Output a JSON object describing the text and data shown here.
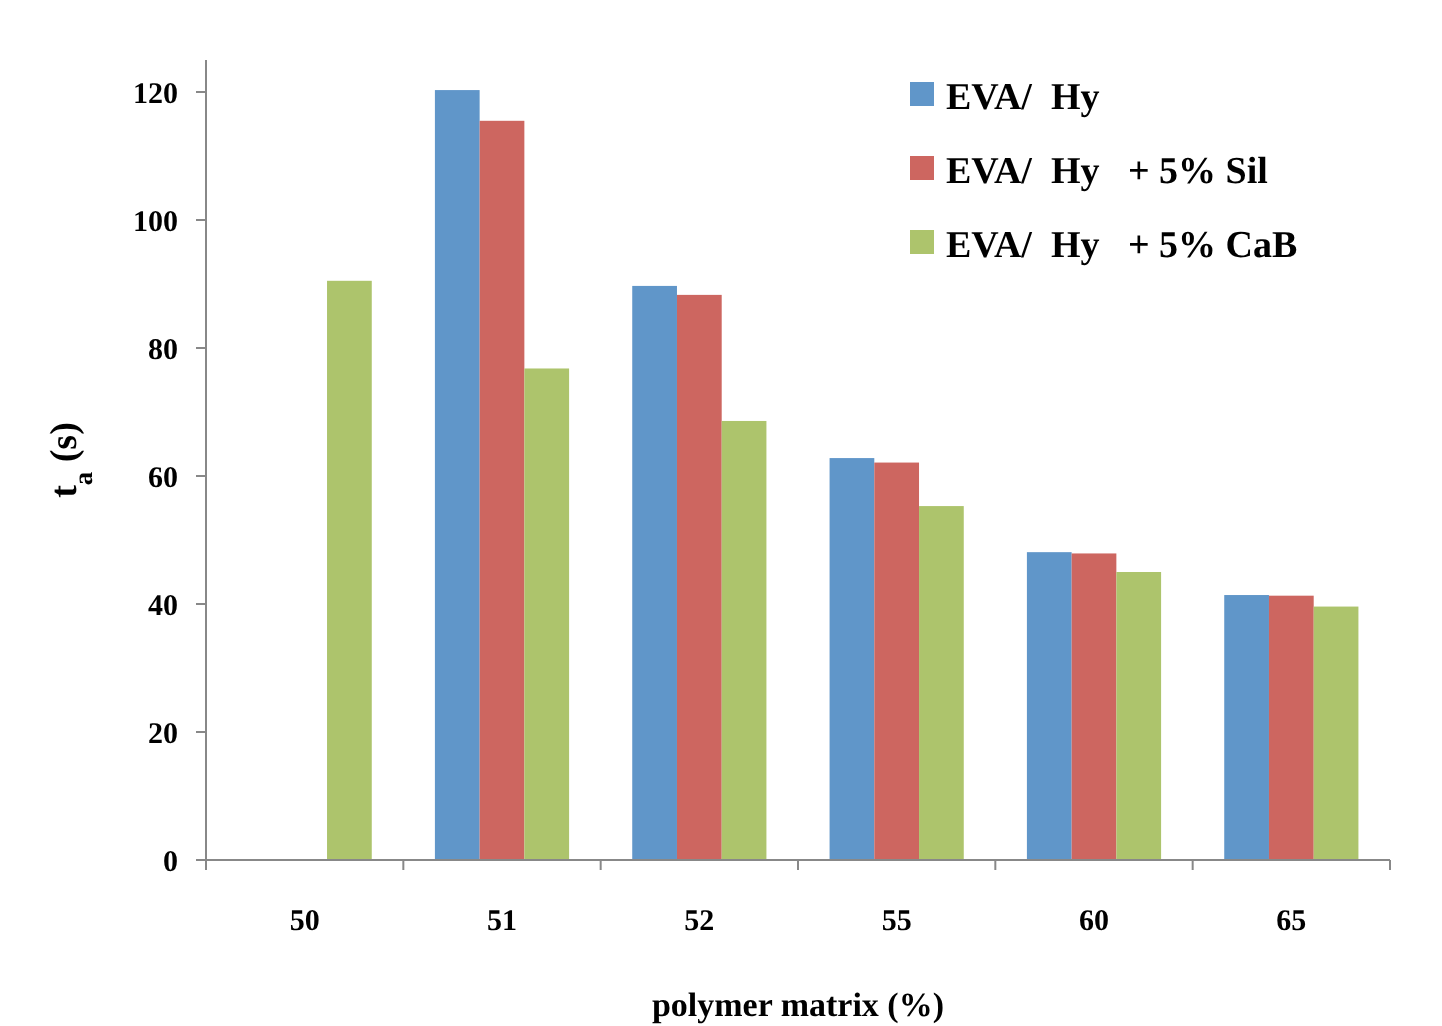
{
  "chart_data": {
    "type": "bar",
    "xlabel": "polymer matrix (%)",
    "ylabel": "t$_{a}$ (s)",
    "categories": [
      "50",
      "51",
      "52",
      "55",
      "60",
      "65"
    ],
    "series": [
      {
        "name": "EVA/  Hy",
        "color": "#6096c9",
        "values": [
          null,
          120.3,
          89.7,
          62.8,
          48.1,
          41.4
        ]
      },
      {
        "name": "EVA/  Hy   + 5% Sil",
        "color": "#cd6660",
        "values": [
          null,
          115.5,
          88.3,
          62.1,
          47.9,
          41.3
        ]
      },
      {
        "name": "EVA/  Hy   + 5% CaB",
        "color": "#adc46c",
        "values": [
          90.5,
          76.8,
          68.6,
          55.3,
          45.0,
          39.6
        ]
      }
    ],
    "ylim": [
      0,
      125
    ],
    "yticks": [
      0,
      20,
      40,
      60,
      80,
      100,
      120
    ],
    "grid": false,
    "legend": "top right"
  }
}
